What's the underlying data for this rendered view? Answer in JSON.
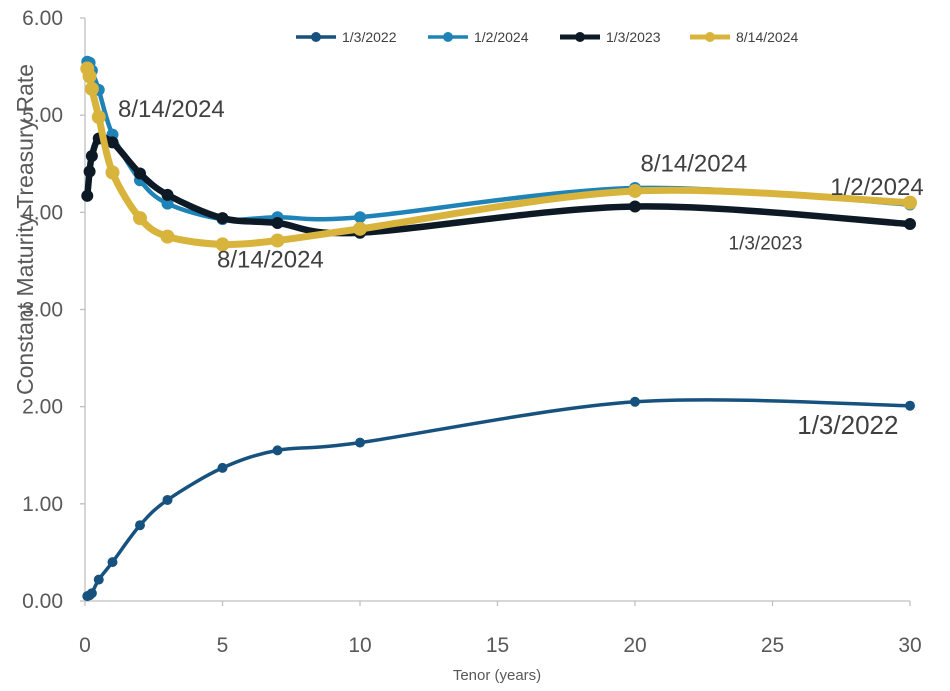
{
  "chart_data": {
    "type": "line",
    "xlabel": "Tenor (years)",
    "ylabel": "Constant Maturity Treasury Rate",
    "xlim": [
      0,
      30
    ],
    "ylim": [
      0,
      6
    ],
    "x_ticks": [
      "0",
      "5",
      "10",
      "15",
      "20",
      "25",
      "30"
    ],
    "y_ticks": [
      "0.00",
      "1.00",
      "2.00",
      "3.00",
      "4.00",
      "5.00",
      "6.00"
    ],
    "grid": false,
    "legend_position": "top",
    "series": [
      {
        "name": "1/3/2022",
        "color": "#17527f",
        "x": [
          0.083,
          0.167,
          0.25,
          0.5,
          1,
          2,
          3,
          5,
          7,
          10,
          20,
          30
        ],
        "y": [
          0.05,
          0.06,
          0.08,
          0.22,
          0.4,
          0.78,
          1.04,
          1.37,
          1.55,
          1.63,
          2.05,
          2.01
        ]
      },
      {
        "name": "1/2/2024",
        "color": "#1f83b7",
        "x": [
          0.083,
          0.167,
          0.25,
          0.5,
          1,
          2,
          3,
          5,
          7,
          10,
          20,
          30
        ],
        "y": [
          5.55,
          5.54,
          5.46,
          5.26,
          4.8,
          4.33,
          4.09,
          3.93,
          3.95,
          3.95,
          4.25,
          4.08
        ]
      },
      {
        "name": "1/3/2023",
        "color": "#0d1a26",
        "x": [
          0.083,
          0.167,
          0.25,
          0.5,
          1,
          2,
          3,
          5,
          7,
          10,
          20,
          30
        ],
        "y": [
          4.17,
          4.42,
          4.58,
          4.76,
          4.72,
          4.4,
          4.18,
          3.94,
          3.89,
          3.79,
          4.06,
          3.88
        ]
      },
      {
        "name": "8/14/2024",
        "color": "#d8b43c",
        "x": [
          0.083,
          0.167,
          0.25,
          0.5,
          1,
          2,
          3,
          5,
          7,
          10,
          20,
          30
        ],
        "y": [
          5.48,
          5.4,
          5.27,
          4.98,
          4.41,
          3.94,
          3.75,
          3.67,
          3.71,
          3.83,
          4.22,
          4.1
        ]
      }
    ],
    "annotations": [
      {
        "text": "8/14/2024",
        "x": 1.2,
        "y": 4.98,
        "size": 24
      },
      {
        "text": "8/14/2024",
        "x": 4.8,
        "y": 3.43,
        "size": 24
      },
      {
        "text": "8/14/2024",
        "x": 20.2,
        "y": 4.42,
        "size": 24
      },
      {
        "text": "1/2/2024",
        "x": 27.1,
        "y": 4.18,
        "size": 24
      },
      {
        "text": "1/3/2023",
        "x": 23.4,
        "y": 3.62,
        "size": 19
      },
      {
        "text": "1/3/2022",
        "x": 25.9,
        "y": 1.72,
        "size": 26
      }
    ]
  }
}
